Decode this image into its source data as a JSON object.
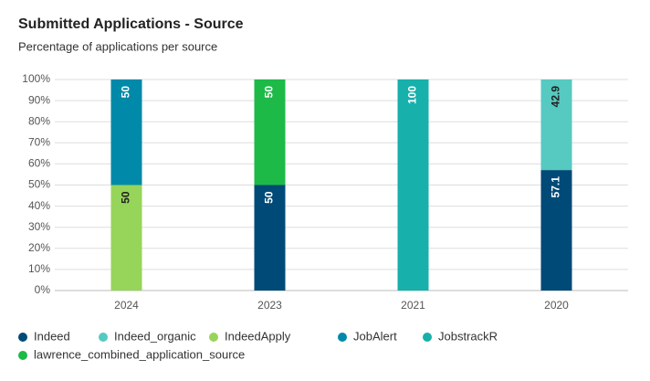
{
  "chart_data": {
    "type": "stacked_bar",
    "title": "Submitted Applications - Source",
    "subtitle": "Percentage of applications per source",
    "categories": [
      "2024",
      "2023",
      "2021",
      "2020"
    ],
    "series": [
      {
        "name": "Indeed",
        "color": "#004a77",
        "values": [
          null,
          50,
          null,
          57.1
        ]
      },
      {
        "name": "Indeed_organic",
        "color": "#56c9c1",
        "values": [
          null,
          null,
          null,
          42.9
        ]
      },
      {
        "name": "IndeedApply",
        "color": "#97d55a",
        "values": [
          50,
          null,
          null,
          null
        ]
      },
      {
        "name": "JobAlert",
        "color": "#0089a8",
        "values": [
          50,
          null,
          null,
          null
        ]
      },
      {
        "name": "JobstrackR",
        "color": "#17b0aa",
        "values": [
          null,
          null,
          100,
          null
        ]
      },
      {
        "name": "lawrence_combined_application_source",
        "color": "#1dba48",
        "values": [
          null,
          50,
          null,
          null
        ]
      }
    ],
    "ylim": [
      0,
      100
    ],
    "yticks": [
      {
        "value": 0,
        "label": "0%"
      },
      {
        "value": 10,
        "label": "10%"
      },
      {
        "value": 20,
        "label": "20%"
      },
      {
        "value": 30,
        "label": "30%"
      },
      {
        "value": 40,
        "label": "40%"
      },
      {
        "value": 50,
        "label": "50%"
      },
      {
        "value": 60,
        "label": "60%"
      },
      {
        "value": 70,
        "label": "70%"
      },
      {
        "value": 80,
        "label": "80%"
      },
      {
        "value": 90,
        "label": "90%"
      },
      {
        "value": 100,
        "label": "100%"
      }
    ],
    "grid": true,
    "legend": "bottom"
  }
}
